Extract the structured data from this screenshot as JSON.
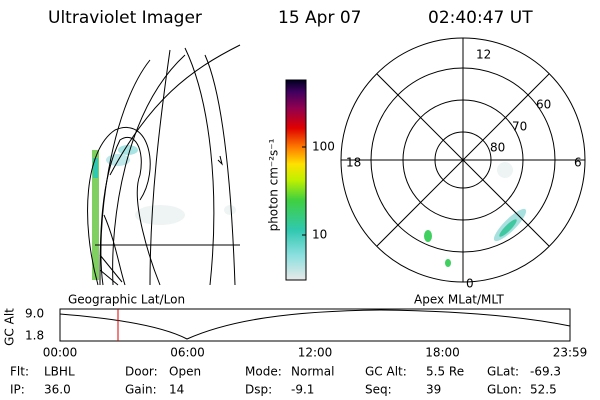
{
  "header": {
    "title": "Ultraviolet Imager",
    "date": "15 Apr 07",
    "time": "02:40:47 UT"
  },
  "colorbar": {
    "label": "photon cm⁻²s⁻¹",
    "ticks": [
      "100",
      "10"
    ]
  },
  "polar": {
    "mlt_labels": [
      "12",
      "18",
      "6",
      "0"
    ],
    "lat_labels": [
      "60",
      "70",
      "80"
    ]
  },
  "panels": {
    "left": "Geographic Lat/Lon",
    "right": "Apex MLat/MLT"
  },
  "timeline": {
    "ylabel": "GC Alt",
    "yticks": [
      "9.0",
      "1.8"
    ],
    "xticks": [
      "00:00",
      "06:00",
      "12:00",
      "18:00",
      "23:59"
    ]
  },
  "footer": {
    "rows": [
      [
        {
          "label": "Flt:",
          "value": "LBHL"
        },
        {
          "label": "Door:",
          "value": "Open"
        },
        {
          "label": "Mode:",
          "value": "Normal"
        },
        {
          "label": "GC Alt:",
          "value": "5.5 Re"
        },
        {
          "label": "GLat:",
          "value": "-69.3"
        }
      ],
      [
        {
          "label": "IP:",
          "value": "36.0"
        },
        {
          "label": "Gain:",
          "value": "14"
        },
        {
          "label": "Dsp:",
          "value": "-9.1"
        },
        {
          "label": "Seq:",
          "value": "39"
        },
        {
          "label": "GLon:",
          "value": "52.5"
        }
      ]
    ]
  }
}
